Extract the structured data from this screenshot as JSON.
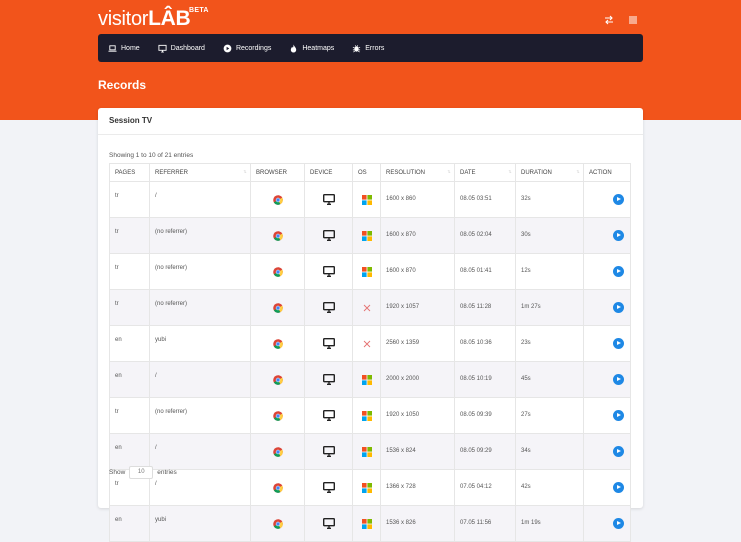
{
  "brand": {
    "name_a": "visitor",
    "name_b": "LÂB",
    "badge": "BETA"
  },
  "topbar": {
    "icons": [
      "swap-icon",
      "menu-icon"
    ]
  },
  "nav": {
    "items": [
      {
        "label": "Home",
        "icon": "laptop-icon"
      },
      {
        "label": "Dashboard",
        "icon": "monitor-icon"
      },
      {
        "label": "Recordings",
        "icon": "play-circle-icon"
      },
      {
        "label": "Heatmaps",
        "icon": "flame-icon"
      },
      {
        "label": "Errors",
        "icon": "bug-icon"
      }
    ]
  },
  "page": {
    "title": "Records"
  },
  "card": {
    "title": "Session TV"
  },
  "table": {
    "info": "Showing 1 to 10 of 21 entries",
    "columns": [
      "PAGES",
      "REFERRER",
      "BROWSER",
      "DEVICE",
      "OS",
      "RESOLUTION",
      "DATE",
      "DURATION",
      "ACTION"
    ],
    "rows": [
      {
        "pages": "tr",
        "referrer": "/",
        "browser": "chrome",
        "device": "desktop",
        "os": "windows",
        "resolution": "1600 x 860",
        "date": "08.05 03:51",
        "duration": "32s"
      },
      {
        "pages": "tr",
        "referrer": "(no referrer)",
        "browser": "chrome",
        "device": "desktop",
        "os": "windows",
        "resolution": "1600 x 870",
        "date": "08.05 02:04",
        "duration": "30s"
      },
      {
        "pages": "tr",
        "referrer": "(no referrer)",
        "browser": "chrome",
        "device": "desktop",
        "os": "windows",
        "resolution": "1600 x 870",
        "date": "08.05 01:41",
        "duration": "12s"
      },
      {
        "pages": "tr",
        "referrer": "(no referrer)",
        "browser": "chrome",
        "device": "desktop",
        "os": "other",
        "resolution": "1920 x 1057",
        "date": "08.05 11:28",
        "duration": "1m 27s"
      },
      {
        "pages": "en",
        "referrer": "yubi",
        "browser": "chrome",
        "device": "desktop",
        "os": "other",
        "resolution": "2560 x 1359",
        "date": "08.05 10:36",
        "duration": "23s"
      },
      {
        "pages": "en",
        "referrer": "/",
        "browser": "chrome",
        "device": "desktop",
        "os": "windows",
        "resolution": "2000 x 2000",
        "date": "08.05 10:19",
        "duration": "45s"
      },
      {
        "pages": "tr",
        "referrer": "(no referrer)",
        "browser": "chrome",
        "device": "desktop",
        "os": "windows",
        "resolution": "1920 x 1050",
        "date": "08.05 09:39",
        "duration": "27s"
      },
      {
        "pages": "en",
        "referrer": "/",
        "browser": "chrome",
        "device": "desktop",
        "os": "windows",
        "resolution": "1536 x 824",
        "date": "08.05 09:29",
        "duration": "34s"
      },
      {
        "pages": "tr",
        "referrer": "/",
        "browser": "chrome",
        "device": "desktop",
        "os": "windows",
        "resolution": "1366 x 728",
        "date": "07.05 04:12",
        "duration": "42s"
      },
      {
        "pages": "en",
        "referrer": "yubi",
        "browser": "chrome",
        "device": "desktop",
        "os": "windows",
        "resolution": "1536 x 826",
        "date": "07.05 11:56",
        "duration": "1m 19s"
      }
    ]
  },
  "footer": {
    "show": "Show",
    "select_value": "10",
    "entries": "entries"
  },
  "colors": {
    "brand_orange": "#f2541b",
    "nav_dark": "#1c1c2d",
    "action_blue": "#1e88e5"
  }
}
